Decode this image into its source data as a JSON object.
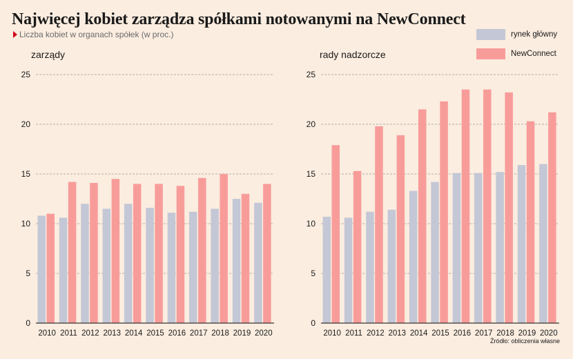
{
  "title": "Najwięcej kobiet zarządza spółkami notowanymi na NewConnect",
  "subtitle": "Liczba kobiet w organach spółek (w proc.)",
  "source": "Źródło: obliczenia własne",
  "colors": {
    "background": "#fbede0",
    "main_market": "#c4c7d5",
    "newconnect": "#f89c9a",
    "accent": "#d0021b"
  },
  "legend": [
    {
      "label": "rynek główny",
      "color": "#c4c7d5"
    },
    {
      "label": "NewConnect",
      "color": "#f89c9a"
    }
  ],
  "chart_data": [
    {
      "type": "bar",
      "title": "zarządy",
      "categories": [
        "2010",
        "2011",
        "2012",
        "2013",
        "2014",
        "2015",
        "2016",
        "2017",
        "2018",
        "2019",
        "2020"
      ],
      "series": [
        {
          "name": "rynek główny",
          "values": [
            10.8,
            10.6,
            12.0,
            11.5,
            12.0,
            11.6,
            11.1,
            11.2,
            11.5,
            12.5,
            12.1
          ]
        },
        {
          "name": "NewConnect",
          "values": [
            11.0,
            14.2,
            14.1,
            14.5,
            14.0,
            14.0,
            13.8,
            14.6,
            15.0,
            13.0,
            14.0
          ]
        }
      ],
      "yticks": [
        0,
        5,
        10,
        15,
        20,
        25
      ],
      "ylim": [
        0,
        25
      ],
      "grid": true,
      "legend_position": "top-right"
    },
    {
      "type": "bar",
      "title": "rady nadzorcze",
      "categories": [
        "2010",
        "2011",
        "2012",
        "2013",
        "2014",
        "2015",
        "2016",
        "2017",
        "2018",
        "2019",
        "2020"
      ],
      "series": [
        {
          "name": "rynek główny",
          "values": [
            10.7,
            10.6,
            11.2,
            11.4,
            13.3,
            14.2,
            15.1,
            15.1,
            15.2,
            15.9,
            16.0
          ]
        },
        {
          "name": "NewConnect",
          "values": [
            17.9,
            15.3,
            19.8,
            18.9,
            21.5,
            22.3,
            23.5,
            23.5,
            23.2,
            20.3,
            21.2
          ]
        }
      ],
      "yticks": [
        0,
        5,
        10,
        15,
        20,
        25
      ],
      "ylim": [
        0,
        25
      ],
      "grid": true,
      "legend_position": "top-right"
    }
  ]
}
